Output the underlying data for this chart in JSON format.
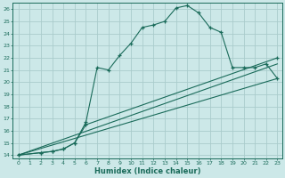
{
  "xlabel": "Humidex (Indice chaleur)",
  "bg_color": "#cce8e8",
  "grid_color": "#aacccc",
  "line_color": "#1a6b5a",
  "xlim": [
    -0.5,
    23.4
  ],
  "ylim": [
    13.7,
    26.5
  ],
  "xticks": [
    0,
    1,
    2,
    3,
    4,
    5,
    6,
    7,
    8,
    9,
    10,
    11,
    12,
    13,
    14,
    15,
    16,
    17,
    18,
    19,
    20,
    21,
    22,
    23
  ],
  "yticks": [
    14,
    15,
    16,
    17,
    18,
    19,
    20,
    21,
    22,
    23,
    24,
    25,
    26
  ],
  "line1_x": [
    0,
    2,
    3,
    4,
    5,
    6,
    7,
    8,
    9,
    10,
    11,
    12,
    13,
    14,
    15,
    16,
    17,
    18,
    19,
    20,
    21,
    22,
    23
  ],
  "line1_y": [
    14,
    14.2,
    14.3,
    14.5,
    15.0,
    16.7,
    21.2,
    21.0,
    22.2,
    23.2,
    24.5,
    24.7,
    25.0,
    26.1,
    26.3,
    25.7,
    24.5,
    24.1,
    21.2,
    21.2,
    21.2,
    21.5,
    20.3
  ],
  "line2_x": [
    0,
    2,
    3,
    4,
    5,
    6,
    23
  ],
  "line2_y": [
    14,
    14.2,
    14.3,
    14.5,
    15.0,
    16.5,
    22.0
  ],
  "line3_x": [
    0,
    23
  ],
  "line3_y": [
    14,
    21.5
  ],
  "line4_x": [
    0,
    23
  ],
  "line4_y": [
    14,
    20.3
  ]
}
